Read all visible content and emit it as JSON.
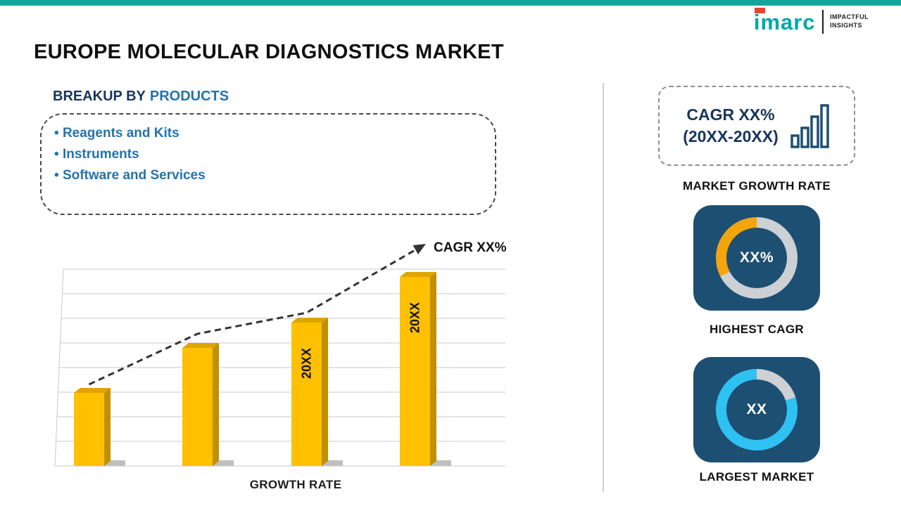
{
  "brand_colors": {
    "top_bar": "#16a59b",
    "logo_teal": "#00a7a7",
    "navy": "#16355c",
    "blue": "#2273ae",
    "card_navy": "#1d4f73"
  },
  "logo": {
    "brand": "imarc",
    "tagline_line1": "IMPACTFUL",
    "tagline_line2": "INSIGHTS"
  },
  "header": {
    "title": "EUROPE MOLECULAR DIAGNOSTICS MARKET"
  },
  "breakup": {
    "heading_prefix": "BREAKUP BY",
    "heading_highlight": "PRODUCTS",
    "items": [
      "Reagents and Kits",
      "Instruments",
      "Software and Services"
    ]
  },
  "chart_data": {
    "type": "bar",
    "categories": [
      "",
      "",
      "20XX",
      "20XX"
    ],
    "values": [
      37,
      60,
      73,
      96
    ],
    "ylim": [
      0,
      100
    ],
    "xlabel": "GROWTH RATE",
    "ylabel": "",
    "trend_label": "CAGR XX%",
    "grid": true,
    "bar_color": "#FFC000",
    "bar_top_color": "#DFA400",
    "bar_side_color": "#C28F00",
    "trend_color": "#333333"
  },
  "right_panel": {
    "growth_box": {
      "line1": "CAGR XX%",
      "line2": "(20XX-20XX)"
    },
    "market_growth_label": "MARKET GROWTH RATE",
    "highest_cagr": {
      "value": "XX%",
      "label": "HIGHEST CAGR",
      "accent": "#F2A50C",
      "gray": "#CDD1D4",
      "gray_deg": 243
    },
    "largest_market": {
      "value": "XX",
      "label": "LARGEST MARKET",
      "accent": "#2FC1F2",
      "gray": "#CDD1D4",
      "gray_deg": 72
    }
  }
}
